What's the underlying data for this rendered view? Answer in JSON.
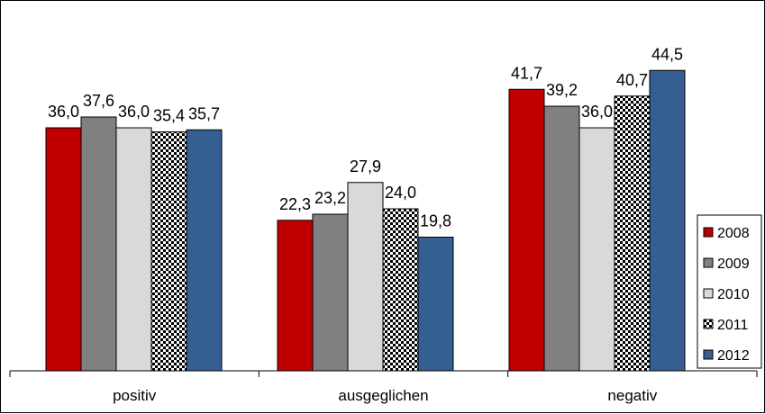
{
  "chart_data": {
    "type": "bar",
    "categories": [
      "positiv",
      "ausgeglichen",
      "negativ"
    ],
    "series": [
      {
        "name": "2008",
        "values": [
          36.0,
          22.3,
          41.7
        ],
        "color": "#C00000",
        "pattern": "solid"
      },
      {
        "name": "2009",
        "values": [
          37.6,
          23.2,
          39.2
        ],
        "color": "#808080",
        "pattern": "solid"
      },
      {
        "name": "2010",
        "values": [
          36.0,
          27.9,
          36.0
        ],
        "color": "#D9D9D9",
        "pattern": "solid"
      },
      {
        "name": "2011",
        "values": [
          35.4,
          24.0,
          40.7
        ],
        "color": "#000000",
        "pattern": "checker"
      },
      {
        "name": "2012",
        "values": [
          35.7,
          19.8,
          44.5
        ],
        "color": "#365F91",
        "pattern": "solid"
      }
    ],
    "value_labels": [
      [
        "36,0",
        "22,3",
        "41,7"
      ],
      [
        "37,6",
        "23,2",
        "39,2"
      ],
      [
        "36,0",
        "27,9",
        "36,0"
      ],
      [
        "35,4",
        "24,0",
        "40,7"
      ],
      [
        "35,7",
        "19,8",
        "44,5"
      ]
    ],
    "ylim": [
      0,
      50
    ],
    "grid": false,
    "legend": "right",
    "title": "",
    "xlabel": "",
    "ylabel": ""
  }
}
